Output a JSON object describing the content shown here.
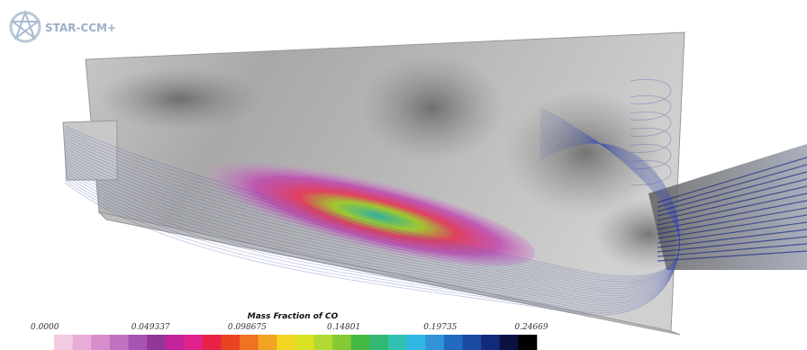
{
  "logo": {
    "text": "STAR-CCM+"
  },
  "colorbar": {
    "title": "Mass Fraction of CO",
    "ticks": [
      "0.0000",
      "0.049337",
      "0.098675",
      "0.14801",
      "0.19735",
      "0.24669"
    ],
    "colors": [
      "#f2cbe2",
      "#e8acd6",
      "#d88ecc",
      "#c272c2",
      "#a854b4",
      "#923698",
      "#c0239a",
      "#e0228c",
      "#e82244",
      "#e84422",
      "#f07222",
      "#f2a422",
      "#f2d422",
      "#d8e222",
      "#b2d832",
      "#84ca32",
      "#44b942",
      "#32b874",
      "#32c2b2",
      "#32b8e2",
      "#3292da",
      "#226ac2",
      "#1a4aa2",
      "#122a7a",
      "#0a1242",
      "#000000"
    ]
  }
}
